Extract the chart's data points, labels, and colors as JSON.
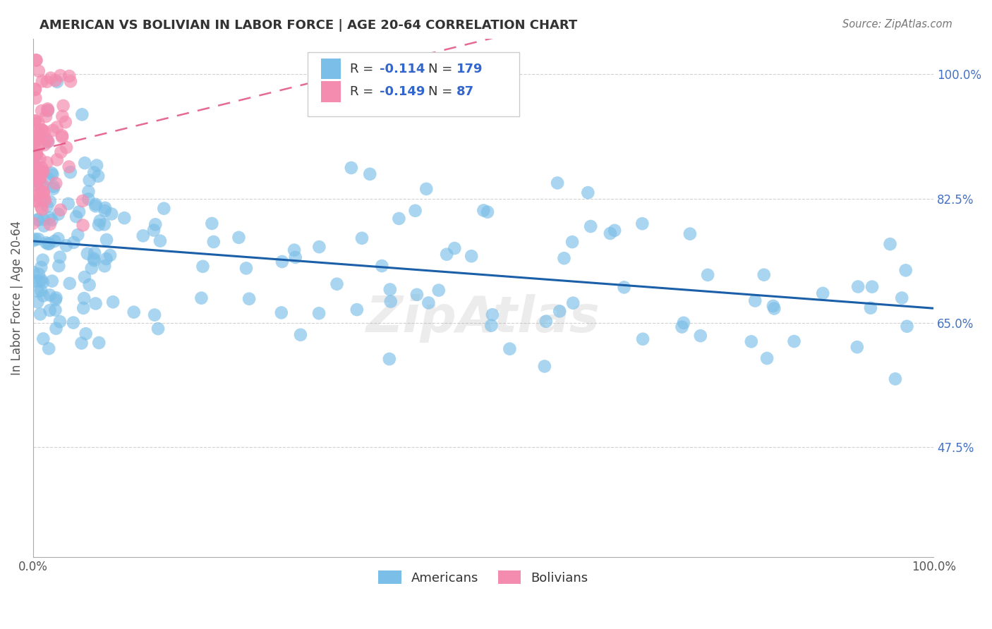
{
  "title": "AMERICAN VS BOLIVIAN IN LABOR FORCE | AGE 20-64 CORRELATION CHART",
  "source": "Source: ZipAtlas.com",
  "ylabel": "In Labor Force | Age 20-64",
  "xlim": [
    0.0,
    1.0
  ],
  "ylim": [
    0.32,
    1.05
  ],
  "yticks": [
    0.475,
    0.65,
    0.825,
    1.0
  ],
  "ytick_labels": [
    "47.5%",
    "65.0%",
    "82.5%",
    "100.0%"
  ],
  "xticks": [
    0.0,
    1.0
  ],
  "xtick_labels": [
    "0.0%",
    "100.0%"
  ],
  "americans_R": -0.114,
  "americans_N": 179,
  "bolivians_R": -0.149,
  "bolivians_N": 87,
  "american_color": "#7bbfe8",
  "bolivian_color": "#f48cb0",
  "american_line_color": "#1a5fa8",
  "bolivian_line_color": "#e05080",
  "background_color": "#ffffff",
  "watermark": "ZipAtlas",
  "am_line_start_y": 0.755,
  "am_line_end_y": 0.68,
  "bo_line_start_y": 0.905,
  "bo_line_end_y": 0.58
}
